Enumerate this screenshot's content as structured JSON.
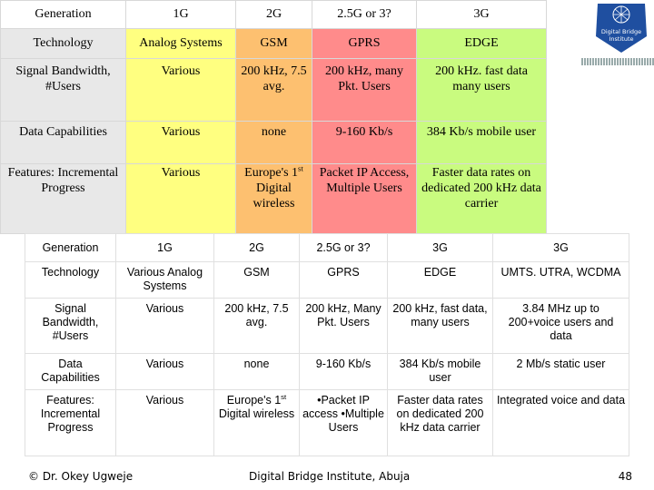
{
  "top_table": {
    "headers": [
      "Generation",
      "1G",
      "2G",
      "2.5G or 3?",
      "3G"
    ],
    "rows": [
      [
        "Technology",
        "Analog Systems",
        "GSM",
        "GPRS",
        "EDGE"
      ],
      [
        "Signal Bandwidth, #Users",
        "Various",
        "200 kHz, 7.5 avg.",
        "200 kHz, many Pkt. Users",
        "200 kHz. fast data many users"
      ],
      [
        "Data Capabilities",
        "Various",
        "none",
        "9-160 Kb/s",
        "384 Kb/s mobile user"
      ],
      [
        "Features: Incremental Progress",
        "Various",
        "Europe's 1st Digital wireless",
        "Packet IP Access, Multiple Users",
        "Faster data rates on dedicated 200 kHz data carrier"
      ]
    ]
  },
  "bottom_table": {
    "headers": [
      "Generation",
      "1G",
      "2G",
      "2.5G or 3?",
      "3G",
      "3G"
    ],
    "rows": [
      [
        "Technology",
        "Various Analog Systems",
        "GSM",
        "GPRS",
        "EDGE",
        "UMTS. UTRA, WCDMA"
      ],
      [
        "Signal Bandwidth, #Users",
        "Various",
        "200 kHz, 7.5 avg.",
        "200 kHz, Many Pkt. Users",
        "200 kHz, fast data, many users",
        "3.84 MHz up to 200+voice users and data"
      ],
      [
        "Data Capabilities",
        "Various",
        "none",
        "9-160 Kb/s",
        "384 Kb/s mobile user",
        "2 Mb/s static user"
      ],
      [
        "Features: Incremental Progress",
        "Various",
        "Europe's 1st Digital wireless",
        "•Packet IP access •Multiple Users",
        "Faster data rates on dedicated 200 kHz data carrier",
        "Integrated voice and data"
      ]
    ]
  },
  "logo": {
    "text": "Digital Bridge Institute",
    "color": "#1f4fa0"
  },
  "footer": {
    "left": "© Dr. Okey Ugweje",
    "center": "Digital Bridge Institute, Abuja",
    "page_number": "48"
  },
  "colors": {
    "col_1g": "#ffff80",
    "col_2g": "#fdc070",
    "col_25g": "#ff8b8b",
    "col_3g": "#c9fb7f",
    "label_col": "#e8e8e8"
  }
}
